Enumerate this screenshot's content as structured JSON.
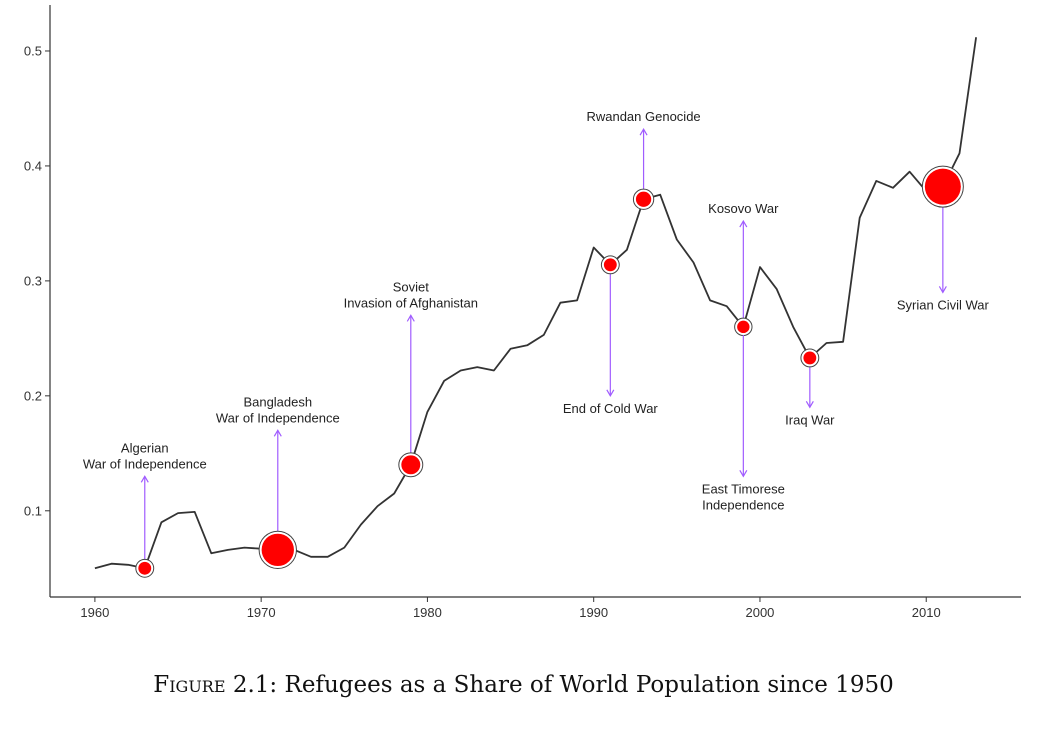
{
  "chart_data": {
    "type": "line",
    "title": "",
    "xlabel": "",
    "ylabel": "",
    "xlim": [
      1957.3,
      2015.7
    ],
    "ylim": [
      0.025,
      0.54
    ],
    "xticks": [
      1960,
      1970,
      1980,
      1990,
      2000,
      2010
    ],
    "yticks": [
      0.1,
      0.2,
      0.3,
      0.4,
      0.5
    ],
    "grid": false,
    "legend": "none",
    "colors": {
      "line": "#333333",
      "marker": "#ff0000",
      "arrow": "#a05cff"
    },
    "series": [
      {
        "x": [
          1960,
          1961,
          1962,
          1963,
          1964,
          1965,
          1966,
          1967,
          1968,
          1969,
          1970,
          1971,
          1972,
          1973,
          1974,
          1975,
          1976,
          1977,
          1978,
          1979,
          1980,
          1981,
          1982,
          1983,
          1984,
          1985,
          1986,
          1987,
          1988,
          1989,
          1990,
          1991,
          1992,
          1993,
          1994,
          1995,
          1996,
          1997,
          1998,
          1999,
          2000,
          2001,
          2002,
          2003,
          2004,
          2005,
          2006,
          2007,
          2008,
          2009,
          2010,
          2011,
          2012,
          2013
        ],
        "y": [
          0.05,
          0.054,
          0.053,
          0.05,
          0.09,
          0.098,
          0.099,
          0.063,
          0.066,
          0.068,
          0.067,
          0.066,
          0.066,
          0.06,
          0.06,
          0.068,
          0.088,
          0.104,
          0.115,
          0.14,
          0.186,
          0.213,
          0.222,
          0.225,
          0.222,
          0.241,
          0.244,
          0.253,
          0.281,
          0.283,
          0.329,
          0.314,
          0.327,
          0.371,
          0.375,
          0.336,
          0.316,
          0.283,
          0.278,
          0.26,
          0.312,
          0.293,
          0.26,
          0.233,
          0.246,
          0.247,
          0.355,
          0.387,
          0.381,
          0.395,
          0.378,
          0.382,
          0.411,
          0.512
        ]
      }
    ],
    "annotations": [
      {
        "label_lines": [
          "Algerian",
          "War of Independence"
        ],
        "x": 1963,
        "y": 0.05,
        "size": 0.2,
        "direction": "up",
        "label_y": 0.13
      },
      {
        "label_lines": [
          "Bangladesh",
          "War of Independence"
        ],
        "x": 1971,
        "y": 0.066,
        "size": 1.0,
        "direction": "up",
        "label_y": 0.17
      },
      {
        "label_lines": [
          "Soviet",
          "Invasion of Afghanistan"
        ],
        "x": 1979,
        "y": 0.14,
        "size": 0.45,
        "direction": "up",
        "label_y": 0.27
      },
      {
        "label_lines": [
          "End of Cold War"
        ],
        "x": 1991,
        "y": 0.314,
        "size": 0.2,
        "direction": "down",
        "label_y": 0.2
      },
      {
        "label_lines": [
          "Rwandan Genocide"
        ],
        "x": 1993,
        "y": 0.371,
        "size": 0.3,
        "direction": "up",
        "label_y": 0.432
      },
      {
        "label_lines": [
          "Kosovo War"
        ],
        "x": 1999,
        "y": 0.26,
        "size": 0.18,
        "direction": "up",
        "label_y": 0.352
      },
      {
        "label_lines": [
          "East Timorese",
          "Independence"
        ],
        "x": 1999,
        "y": 0.26,
        "size": 0.18,
        "direction": "down",
        "label_y": 0.13
      },
      {
        "label_lines": [
          "Iraq War"
        ],
        "x": 2003,
        "y": 0.233,
        "size": 0.2,
        "direction": "down",
        "label_y": 0.19
      },
      {
        "label_lines": [
          "Syrian Civil War"
        ],
        "x": 2011,
        "y": 0.382,
        "size": 1.15,
        "direction": "down",
        "label_y": 0.29
      }
    ]
  },
  "caption": {
    "label": "Figure",
    "number": " 2.1:",
    "text": " Refugees as a Share of World Population since 1950"
  }
}
